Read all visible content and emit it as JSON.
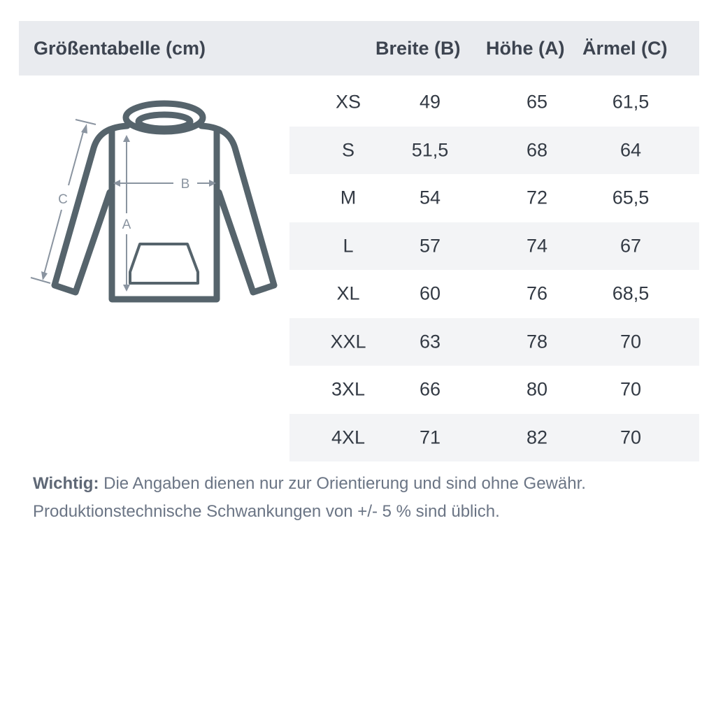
{
  "header": {
    "title": "Größentabelle (cm)",
    "columns": [
      "Breite (B)",
      "Höhe (A)",
      "Ärmel (C)"
    ]
  },
  "diagram": {
    "labels": {
      "a": "A",
      "b": "B",
      "c": "C"
    },
    "stroke_color": "#56646c",
    "arrow_color": "#8a94a0"
  },
  "rows": [
    {
      "size": "XS",
      "b": "49",
      "a": "65",
      "c": "61,5"
    },
    {
      "size": "S",
      "b": "51,5",
      "a": "68",
      "c": "64"
    },
    {
      "size": "M",
      "b": "54",
      "a": "72",
      "c": "65,5"
    },
    {
      "size": "L",
      "b": "57",
      "a": "74",
      "c": "67"
    },
    {
      "size": "XL",
      "b": "60",
      "a": "76",
      "c": "68,5"
    },
    {
      "size": "XXL",
      "b": "63",
      "a": "78",
      "c": "70"
    },
    {
      "size": "3XL",
      "b": "66",
      "a": "80",
      "c": "70"
    },
    {
      "size": "4XL",
      "b": "71",
      "a": "82",
      "c": "70"
    }
  ],
  "footer": {
    "label": "Wichtig:",
    "line1": " Die Angaben dienen nur zur Orientierung und sind ohne Gewähr.",
    "line2": "Produktionstechnische Schwankungen von +/- 5 % sind üblich."
  }
}
